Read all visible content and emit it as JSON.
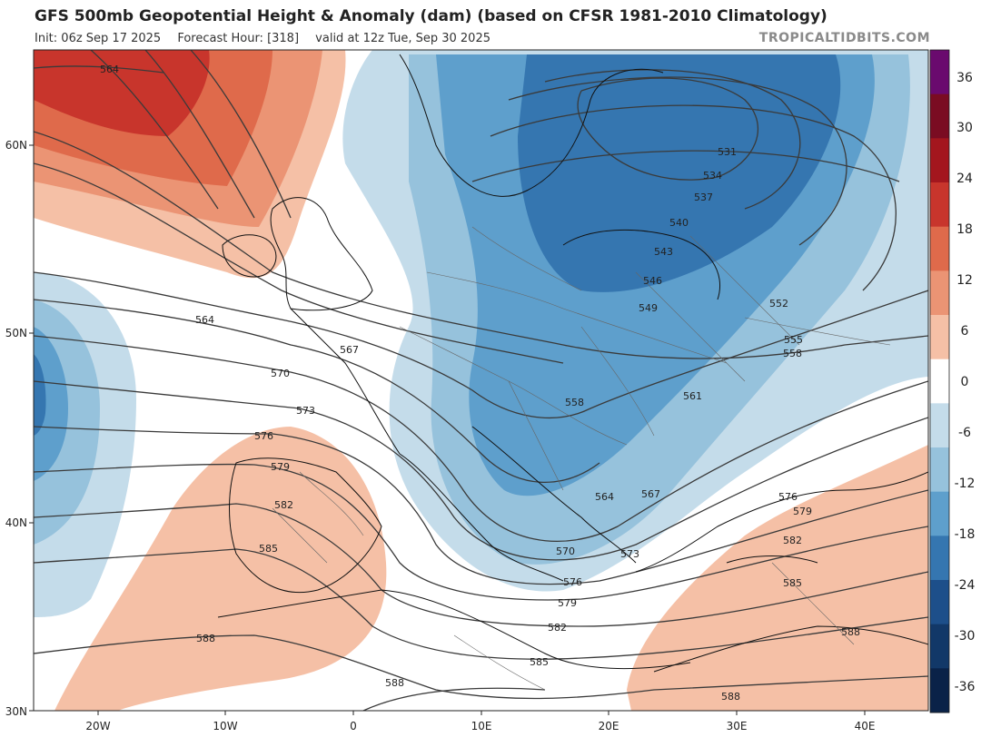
{
  "header": {
    "title": "GFS 500mb Geopotential Height & Anomaly (dam) (based on CFSR 1981-2010 Climatology)",
    "init": "Init: 06z Sep 17 2025",
    "forecast_hour": "Forecast Hour: [318]",
    "valid": "valid at 12z Tue, Sep 30 2025",
    "brand": "TROPICALTIDBITS.COM"
  },
  "axes": {
    "lat_labels": [
      "60N",
      "50N",
      "40N",
      "30N"
    ],
    "lon_labels": [
      "20W",
      "10W",
      "0",
      "10E",
      "20E",
      "30E",
      "40E"
    ]
  },
  "colorbar": {
    "labels": [
      "36",
      "30",
      "24",
      "18",
      "12",
      "6",
      "0",
      "-6",
      "-12",
      "-18",
      "-24",
      "-30",
      "-36"
    ],
    "colors": [
      "#6a0a6e",
      "#7a0c22",
      "#a3161e",
      "#c8352c",
      "#df6a4b",
      "#eb9474",
      "#f5c0a6",
      "#ffffff",
      "#c4dcea",
      "#96c2dc",
      "#5e9fcc",
      "#3576b0",
      "#1d4f8a",
      "#123868",
      "#0a2248"
    ]
  },
  "contour_labels": [
    "564",
    "564",
    "567",
    "570",
    "573",
    "576",
    "579",
    "582",
    "585",
    "588",
    "588",
    "531",
    "534",
    "537",
    "540",
    "543",
    "546",
    "549",
    "552",
    "555",
    "558",
    "558",
    "561",
    "564",
    "567",
    "570",
    "573",
    "576",
    "579",
    "582",
    "585",
    "588",
    "576",
    "579",
    "582",
    "585",
    "588"
  ],
  "anomaly_colors": {
    "pos_strong": "#c8352c",
    "pos_mid": "#df6a4b",
    "pos_light": "#eb9474",
    "pos_faint": "#f5c0a6",
    "neg_faint": "#c4dcea",
    "neg_light": "#96c2dc",
    "neg_mid": "#5e9fcc",
    "neg_strong": "#3576b0"
  }
}
